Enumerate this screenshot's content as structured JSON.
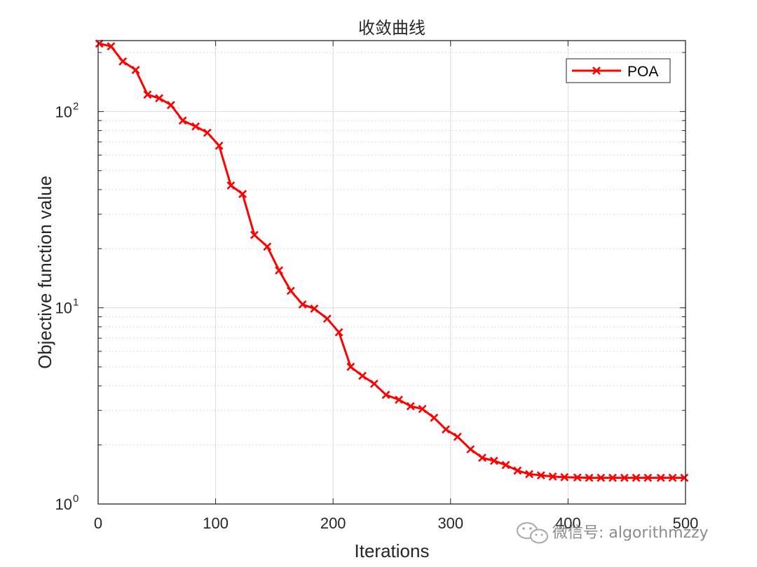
{
  "chart_data": {
    "type": "line",
    "title": "收敛曲线",
    "xlabel": "Iterations",
    "ylabel": "Objective function value",
    "xlim": [
      0,
      500
    ],
    "ylim": [
      1,
      230
    ],
    "yscale": "log",
    "grid": true,
    "legend_position": "top-right",
    "x_ticks": [
      0,
      100,
      200,
      300,
      400,
      500
    ],
    "x_tick_labels": [
      "0",
      "100",
      "200",
      "300",
      "400",
      "500"
    ],
    "y_ticks": [
      {
        "value": 1,
        "base": "10",
        "exp": "0"
      },
      {
        "value": 10,
        "base": "10",
        "exp": "1"
      },
      {
        "value": 100,
        "base": "10",
        "exp": "2"
      }
    ],
    "series": [
      {
        "name": "POA",
        "color": "#ff0000",
        "marker": "x",
        "x": [
          1,
          11,
          21,
          32,
          42,
          52,
          62,
          72,
          83,
          93,
          103,
          113,
          123,
          133,
          144,
          154,
          164,
          174,
          184,
          195,
          205,
          215,
          225,
          235,
          245,
          256,
          266,
          276,
          286,
          296,
          306,
          317,
          327,
          337,
          347,
          357,
          367,
          377,
          387,
          397,
          408,
          418,
          428,
          438,
          448,
          458,
          468,
          479,
          489,
          499
        ],
        "y": [
          222,
          215,
          180,
          163,
          122,
          117,
          108,
          90,
          84,
          78,
          67,
          42,
          38,
          23.5,
          20.5,
          15.5,
          12.2,
          10.4,
          9.9,
          8.8,
          7.5,
          5.0,
          4.5,
          4.1,
          3.6,
          3.4,
          3.15,
          3.05,
          2.75,
          2.4,
          2.2,
          1.9,
          1.72,
          1.66,
          1.58,
          1.48,
          1.42,
          1.4,
          1.38,
          1.37,
          1.365,
          1.36,
          1.36,
          1.36,
          1.36,
          1.36,
          1.36,
          1.36,
          1.36,
          1.36
        ]
      }
    ]
  },
  "watermark": {
    "text": "微信号: algorithmzzy",
    "icon": "wechat-icon"
  }
}
